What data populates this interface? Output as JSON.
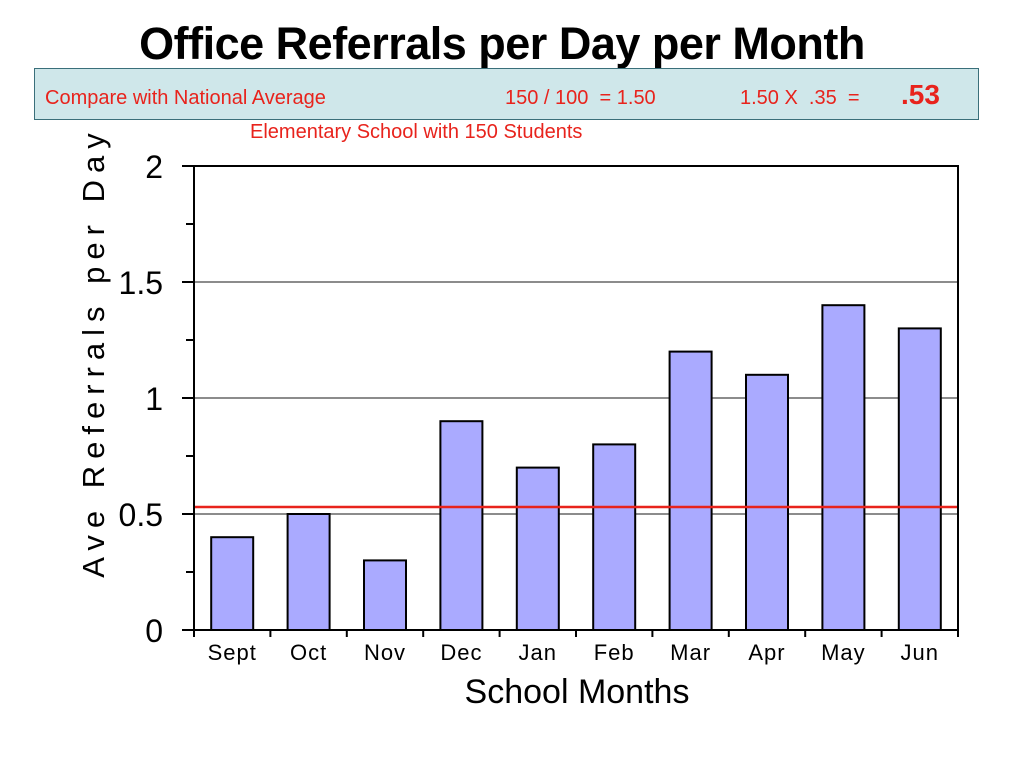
{
  "title": "Office Referrals per Day per Month",
  "compare": {
    "label": "Compare with National Average",
    "calc1": "150 / 100  = 1.50",
    "calc2": "1.50 X  .35  =",
    "result": ".53"
  },
  "subtitle": "Elementary School with 150 Students",
  "colors": {
    "bar_fill": "#aaaaff",
    "reference_line": "#e8231c",
    "compare_box_bg": "#cfe7ea",
    "compare_text": "#e8231c"
  },
  "chart_data": {
    "type": "bar",
    "categories": [
      "Sept",
      "Oct",
      "Nov",
      "Dec",
      "Jan",
      "Feb",
      "Mar",
      "Apr",
      "May",
      "Jun"
    ],
    "values": [
      0.4,
      0.5,
      0.3,
      0.9,
      0.7,
      0.8,
      1.2,
      1.1,
      1.4,
      1.3
    ],
    "xlabel": "School Months",
    "ylabel": "Ave Referrals per Day",
    "ylim": [
      0,
      2
    ],
    "yticks": [
      "0",
      "0.5",
      "1",
      "1.5",
      "2"
    ],
    "reference_line": {
      "value": 0.53
    },
    "grid": true
  }
}
